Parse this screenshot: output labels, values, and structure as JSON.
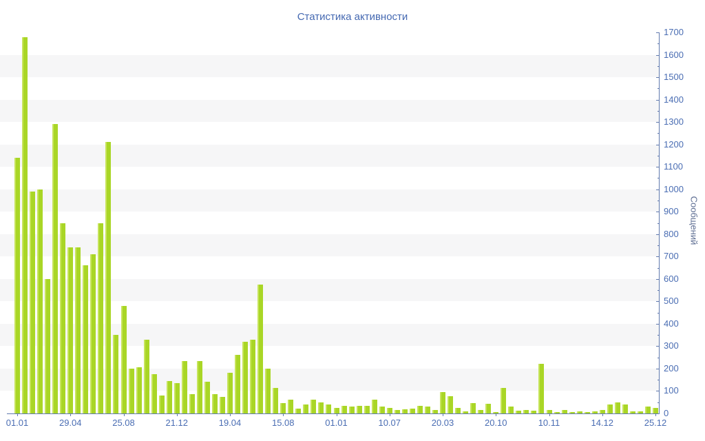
{
  "chart_data": {
    "type": "bar",
    "title": "Статистика активности",
    "ylabel": "Сообщений",
    "xlabel": "",
    "ylim": [
      0,
      1700
    ],
    "y_tick_step": 100,
    "y_minor_tick_step": 50,
    "grid": "horizontal-stripes",
    "legend": "none",
    "x_tick_every_n_bars": 7,
    "x_tick_labels": [
      "01.01",
      "29.04",
      "25.08",
      "21.12",
      "19.04",
      "15.08",
      "01.01",
      "10.07",
      "20.03",
      "20.10",
      "10.11",
      "14.12",
      "25.12"
    ],
    "values": [
      1140,
      1680,
      990,
      1000,
      600,
      1290,
      850,
      740,
      740,
      660,
      710,
      850,
      1210,
      350,
      480,
      200,
      205,
      330,
      175,
      80,
      145,
      135,
      235,
      85,
      235,
      140,
      85,
      75,
      180,
      260,
      320,
      330,
      575,
      200,
      115,
      45,
      60,
      20,
      40,
      60,
      50,
      40,
      25,
      35,
      30,
      35,
      35,
      60,
      30,
      25,
      15,
      17,
      22,
      35,
      30,
      16,
      95,
      78,
      25,
      8,
      47,
      14,
      42,
      5,
      115,
      32,
      11,
      14,
      12,
      220,
      15,
      7,
      15,
      5,
      9,
      7,
      10,
      15,
      40,
      50,
      40,
      8,
      10,
      30,
      25
    ],
    "colors": {
      "bar_fill": "#a9d626",
      "bar_highlight": "#c7e45c",
      "stripe": "#f6f6f7",
      "axis": "#6079ae",
      "tick_label": "#4a6db3",
      "title": "#4468b1",
      "ylabel": "#5d6d92",
      "background": "#ffffff"
    }
  }
}
